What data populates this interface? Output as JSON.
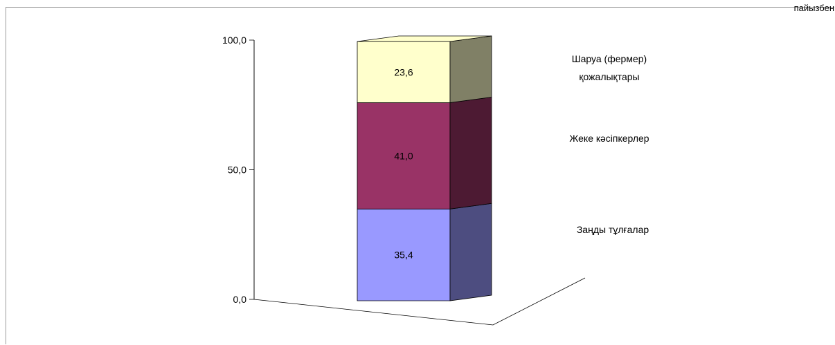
{
  "corner_text": "пайызбен",
  "chart_data": {
    "type": "bar",
    "subtype": "stacked-3d",
    "categories": [
      ""
    ],
    "series": [
      {
        "name": "Заңды тұлғалар",
        "values": [
          35.4
        ],
        "color": "#9999ff",
        "side_color": "#4d4d80"
      },
      {
        "name": "Жеке кәсіпкерлер",
        "values": [
          41.0
        ],
        "color": "#993366",
        "side_color": "#4d1a33"
      },
      {
        "name": "Шаруа (фермер) қожалықтары",
        "values": [
          23.6
        ],
        "color": "#ffffcc",
        "side_color": "#808066"
      }
    ],
    "data_labels": [
      "35,4",
      "41,0",
      "23,6"
    ],
    "legend_labels": [
      [
        "Заңды тұлғалар"
      ],
      [
        "Жеке кәсіпкерлер"
      ],
      [
        "Шаруа (фермер)",
        "қожалықтары"
      ]
    ],
    "y_ticks": [
      0,
      50,
      100
    ],
    "y_tick_labels": [
      "0,0",
      "50,0",
      "100,0"
    ],
    "ylim": [
      0,
      100
    ],
    "legend_position": "right",
    "grid": false
  }
}
